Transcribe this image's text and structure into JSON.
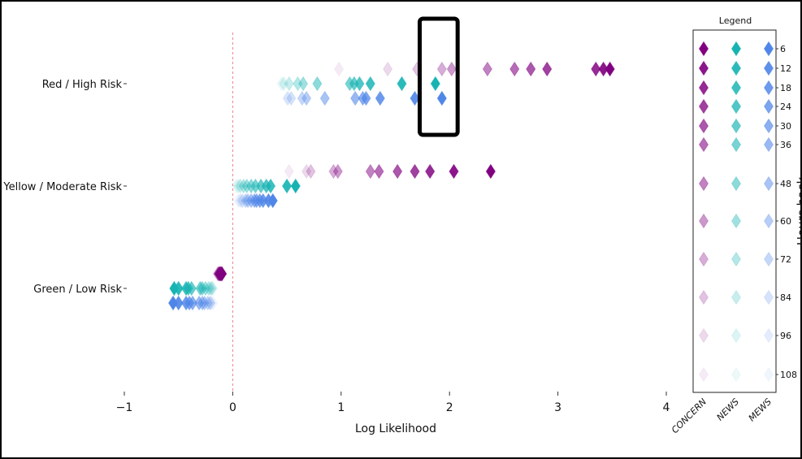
{
  "chart_data": {
    "type": "scatter",
    "xlabel": "Log Likelihood",
    "ylabel": "",
    "xlim": [
      -1,
      4
    ],
    "xticks": [
      -1,
      0,
      1,
      2,
      3,
      4
    ],
    "categories": [
      "Red / High Risk",
      "Yellow / Moderate Risk",
      "Green / Low Risk"
    ],
    "reference_line": {
      "x": 0,
      "style": "dashed",
      "color": "#f08080"
    },
    "highlight": {
      "category": "Red / High Risk",
      "x_range": [
        1.8,
        2.0
      ]
    },
    "legend": {
      "title": "Legend",
      "side_label": "Hours back",
      "hours": [
        6,
        12,
        18,
        24,
        30,
        36,
        48,
        60,
        72,
        84,
        96,
        108
      ],
      "columns": [
        "CONCERN",
        "NEWS",
        "MEWS"
      ]
    },
    "colors": {
      "CONCERN": "#800080",
      "NEWS": "#17b3b3",
      "MEWS": "#4f86e8"
    },
    "series": [
      {
        "name": "CONCERN",
        "category": "Red / High Risk",
        "x": [
          3.48,
          3.42,
          3.35,
          2.9,
          2.75,
          2.6,
          2.35,
          2.02,
          1.93,
          1.7,
          1.43,
          0.98
        ],
        "hours": [
          6,
          12,
          18,
          24,
          30,
          36,
          48,
          60,
          72,
          84,
          96,
          108
        ]
      },
      {
        "name": "NEWS",
        "category": "Red / High Risk",
        "x": [
          1.87,
          1.56,
          1.27,
          1.17,
          1.12,
          1.08,
          0.78,
          0.65,
          0.6,
          0.52,
          0.47,
          0.45
        ],
        "hours": [
          6,
          12,
          18,
          24,
          30,
          36,
          48,
          60,
          72,
          84,
          96,
          108
        ]
      },
      {
        "name": "MEWS",
        "category": "Red / High Risk",
        "x": [
          1.93,
          1.68,
          1.36,
          1.23,
          1.2,
          1.13,
          0.85,
          0.68,
          0.64,
          0.54,
          0.51,
          0.5
        ],
        "hours": [
          6,
          12,
          18,
          24,
          30,
          36,
          48,
          60,
          72,
          84,
          96,
          108
        ]
      },
      {
        "name": "CONCERN",
        "category": "Yellow / Moderate Risk",
        "x": [
          2.38,
          2.04,
          1.82,
          1.68,
          1.52,
          1.35,
          1.27,
          0.97,
          0.93,
          0.72,
          0.68,
          0.52
        ],
        "hours": [
          6,
          12,
          18,
          24,
          30,
          36,
          48,
          60,
          72,
          84,
          96,
          108
        ]
      },
      {
        "name": "NEWS",
        "category": "Yellow / Moderate Risk",
        "x": [
          0.58,
          0.5,
          0.35,
          0.31,
          0.26,
          0.21,
          0.17,
          0.13,
          0.1,
          0.07,
          0.05,
          0.03
        ],
        "hours": [
          6,
          12,
          18,
          24,
          30,
          36,
          48,
          60,
          72,
          84,
          96,
          108
        ]
      },
      {
        "name": "MEWS",
        "category": "Yellow / Moderate Risk",
        "x": [
          0.37,
          0.33,
          0.28,
          0.25,
          0.22,
          0.2,
          0.17,
          0.14,
          0.12,
          0.09,
          0.07,
          0.05
        ],
        "hours": [
          6,
          12,
          18,
          24,
          30,
          36,
          48,
          60,
          72,
          84,
          96,
          108
        ]
      },
      {
        "name": "CONCERN",
        "category": "Green / Low Risk",
        "x": [
          -0.1,
          -0.1,
          -0.11,
          -0.11,
          -0.12,
          -0.12,
          -0.12,
          -0.13,
          -0.13,
          -0.13,
          -0.14,
          -0.14
        ],
        "hours": [
          6,
          12,
          18,
          24,
          30,
          36,
          48,
          60,
          72,
          84,
          96,
          108
        ]
      },
      {
        "name": "NEWS",
        "category": "Green / Low Risk",
        "x": [
          -0.54,
          -0.5,
          -0.43,
          -0.41,
          -0.38,
          -0.3,
          -0.28,
          -0.25,
          -0.22,
          -0.2,
          -0.19,
          -0.18
        ],
        "hours": [
          6,
          12,
          18,
          24,
          30,
          36,
          48,
          60,
          72,
          84,
          96,
          108
        ]
      },
      {
        "name": "MEWS",
        "category": "Green / Low Risk",
        "x": [
          -0.55,
          -0.5,
          -0.43,
          -0.4,
          -0.37,
          -0.31,
          -0.28,
          -0.26,
          -0.23,
          -0.21,
          -0.2,
          -0.18
        ],
        "hours": [
          6,
          12,
          18,
          24,
          30,
          36,
          48,
          60,
          72,
          84,
          96,
          108
        ]
      }
    ]
  }
}
